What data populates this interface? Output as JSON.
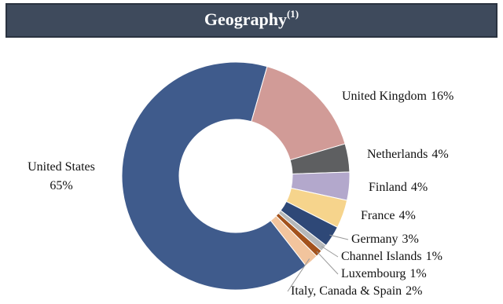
{
  "chart_data": {
    "type": "donut",
    "title": "Geography",
    "title_note": "(1)",
    "categories": [
      "United States",
      "United Kingdom",
      "Netherlands",
      "Finland",
      "France",
      "Germany",
      "Channel Islands",
      "Luxembourg",
      "Italy, Canada & Spain"
    ],
    "values": [
      65,
      16,
      4,
      4,
      4,
      3,
      1,
      1,
      2
    ],
    "value_labels": [
      "65%",
      "16%",
      "4%",
      "4%",
      "4%",
      "3%",
      "1%",
      "1%",
      "2%"
    ],
    "colors": [
      "#3f5b8c",
      "#d19b97",
      "#5e5f61",
      "#b3a8cc",
      "#f6d48c",
      "#2e4877",
      "#b5b8ba",
      "#a3521c",
      "#f2c49d"
    ]
  }
}
